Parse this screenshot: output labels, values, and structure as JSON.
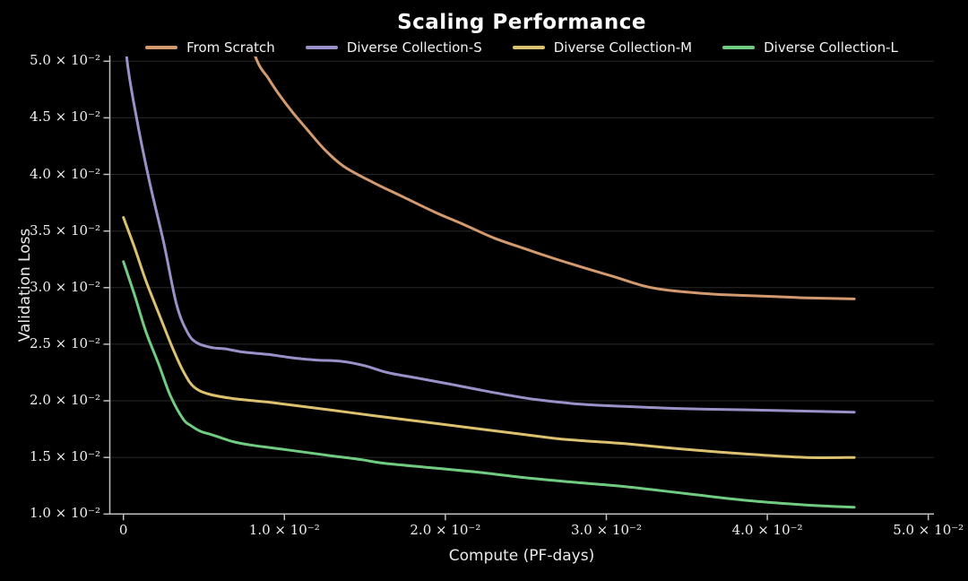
{
  "chart_data": {
    "type": "line",
    "title": "Scaling Performance",
    "xlabel": "Compute (PF-days)",
    "ylabel": "Validation Loss",
    "xlim": [
      -0.0009,
      0.0515
    ],
    "ylim": [
      0.01,
      0.0504
    ],
    "grid": "horizontal-only",
    "grid_color": "#282828",
    "background_color": "#000000",
    "spine_color": "#c0c0c0",
    "legend_position": "top-center",
    "x_ticks": [
      {
        "v": 0,
        "label": "0"
      },
      {
        "v": 0.01,
        "label": "1.0 × 10⁻²"
      },
      {
        "v": 0.02,
        "label": "2.0 × 10⁻²"
      },
      {
        "v": 0.03,
        "label": "3.0 × 10⁻²"
      },
      {
        "v": 0.04,
        "label": "4.0 × 10⁻²"
      },
      {
        "v": 0.05,
        "label": "5.0 × 10⁻²"
      }
    ],
    "y_ticks": [
      {
        "v": 0.01,
        "label": "1.0 × 10⁻²"
      },
      {
        "v": 0.015,
        "label": "1.5 × 10⁻²"
      },
      {
        "v": 0.02,
        "label": "2.0 × 10⁻²"
      },
      {
        "v": 0.025,
        "label": "2.5 × 10⁻²"
      },
      {
        "v": 0.03,
        "label": "3.0 × 10⁻²"
      },
      {
        "v": 0.035,
        "label": "3.5 × 10⁻²"
      },
      {
        "v": 0.04,
        "label": "4.0 × 10⁻²"
      },
      {
        "v": 0.045,
        "label": "4.5 × 10⁻²"
      },
      {
        "v": 0.05,
        "label": "5.0 × 10⁻²"
      }
    ],
    "series": [
      {
        "name": "From Scratch",
        "color": "#d29a6e",
        "points": [
          [
            0.007,
            0.056
          ],
          [
            0.0082,
            0.0504
          ],
          [
            0.009,
            0.0485
          ],
          [
            0.0096,
            0.0472
          ],
          [
            0.0105,
            0.0455
          ],
          [
            0.0114,
            0.044
          ],
          [
            0.0125,
            0.0422
          ],
          [
            0.0137,
            0.0407
          ],
          [
            0.0155,
            0.0393
          ],
          [
            0.0174,
            0.038
          ],
          [
            0.0193,
            0.0367
          ],
          [
            0.0211,
            0.0356
          ],
          [
            0.023,
            0.0344
          ],
          [
            0.0248,
            0.0335
          ],
          [
            0.0267,
            0.0326
          ],
          [
            0.0285,
            0.0318
          ],
          [
            0.0304,
            0.031
          ],
          [
            0.0322,
            0.0302
          ],
          [
            0.0332,
            0.0299
          ],
          [
            0.035,
            0.0296
          ],
          [
            0.0369,
            0.0294
          ],
          [
            0.0387,
            0.0293
          ],
          [
            0.0406,
            0.0292
          ],
          [
            0.0424,
            0.0291
          ],
          [
            0.0454,
            0.029
          ]
        ]
      },
      {
        "name": "Diverse Collection-S",
        "color": "#9a91c8",
        "points": [
          [
            0.0,
            0.056
          ],
          [
            0.0002,
            0.0504
          ],
          [
            0.0008,
            0.0451
          ],
          [
            0.0016,
            0.0395
          ],
          [
            0.0025,
            0.034
          ],
          [
            0.0033,
            0.0285
          ],
          [
            0.004,
            0.026
          ],
          [
            0.0046,
            0.0251
          ],
          [
            0.0055,
            0.0247
          ],
          [
            0.0063,
            0.0246
          ],
          [
            0.0075,
            0.0243
          ],
          [
            0.009,
            0.0241
          ],
          [
            0.0105,
            0.0238
          ],
          [
            0.012,
            0.0236
          ],
          [
            0.0135,
            0.0235
          ],
          [
            0.015,
            0.0231
          ],
          [
            0.0164,
            0.0225
          ],
          [
            0.0183,
            0.022
          ],
          [
            0.0202,
            0.0215
          ],
          [
            0.022,
            0.021
          ],
          [
            0.0239,
            0.0205
          ],
          [
            0.0257,
            0.0201
          ],
          [
            0.0284,
            0.0197
          ],
          [
            0.0313,
            0.0195
          ],
          [
            0.035,
            0.0193
          ],
          [
            0.0387,
            0.0192
          ],
          [
            0.042,
            0.0191
          ],
          [
            0.0454,
            0.019
          ]
        ]
      },
      {
        "name": "Diverse Collection-M",
        "color": "#dcc26f",
        "points": [
          [
            0.0,
            0.0362
          ],
          [
            0.0007,
            0.0335
          ],
          [
            0.0014,
            0.0306
          ],
          [
            0.0022,
            0.0277
          ],
          [
            0.0031,
            0.0245
          ],
          [
            0.0038,
            0.0224
          ],
          [
            0.0044,
            0.0212
          ],
          [
            0.0053,
            0.0206
          ],
          [
            0.0068,
            0.0202
          ],
          [
            0.0089,
            0.0199
          ],
          [
            0.01,
            0.0197
          ],
          [
            0.0128,
            0.0192
          ],
          [
            0.0155,
            0.0187
          ],
          [
            0.0183,
            0.0182
          ],
          [
            0.0211,
            0.0177
          ],
          [
            0.0239,
            0.0172
          ],
          [
            0.0267,
            0.0167
          ],
          [
            0.0283,
            0.0165
          ],
          [
            0.0313,
            0.0162
          ],
          [
            0.035,
            0.0157
          ],
          [
            0.0387,
            0.0153
          ],
          [
            0.0424,
            0.015
          ],
          [
            0.0454,
            0.015
          ]
        ]
      },
      {
        "name": "Diverse Collection-L",
        "color": "#70cc81",
        "points": [
          [
            0.0,
            0.0323
          ],
          [
            0.0007,
            0.0293
          ],
          [
            0.0014,
            0.0261
          ],
          [
            0.0022,
            0.0232
          ],
          [
            0.0029,
            0.0205
          ],
          [
            0.0037,
            0.0184
          ],
          [
            0.0042,
            0.0178
          ],
          [
            0.0048,
            0.0173
          ],
          [
            0.0055,
            0.017
          ],
          [
            0.0068,
            0.0164
          ],
          [
            0.0079,
            0.0161
          ],
          [
            0.01,
            0.0157
          ],
          [
            0.0126,
            0.0152
          ],
          [
            0.0148,
            0.0148
          ],
          [
            0.0161,
            0.0145
          ],
          [
            0.019,
            0.0141
          ],
          [
            0.022,
            0.0137
          ],
          [
            0.025,
            0.0132
          ],
          [
            0.028,
            0.0128
          ],
          [
            0.0313,
            0.0124
          ],
          [
            0.035,
            0.0118
          ],
          [
            0.0387,
            0.0112
          ],
          [
            0.0424,
            0.0108
          ],
          [
            0.0454,
            0.0106
          ]
        ]
      }
    ]
  }
}
